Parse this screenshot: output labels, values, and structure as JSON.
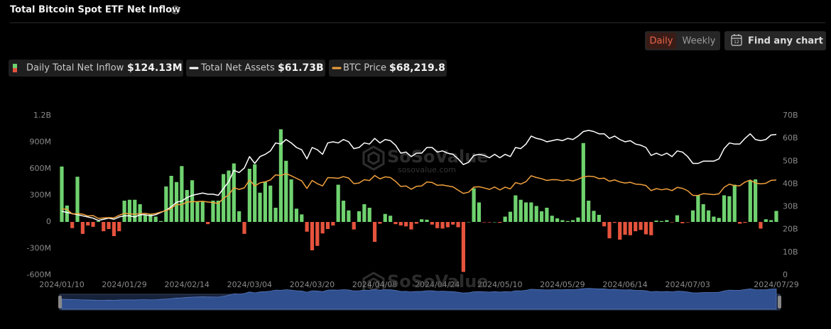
{
  "chart_data": {
    "type": "combo",
    "title": "Total Bitcoin Spot ETF Net Inflow",
    "controls": [
      "Daily",
      "Weekly"
    ],
    "active_control": 0,
    "find_chart": "Find any chart",
    "find_chart_icon": "12",
    "watermark": {
      "name": "SoSoValue",
      "url": "sosovalue.com"
    },
    "grid": false,
    "categories": [
      "2024/01/10",
      null,
      null,
      null,
      null,
      null,
      null,
      null,
      null,
      null,
      null,
      null,
      "2024/01/29",
      null,
      null,
      null,
      null,
      null,
      null,
      null,
      null,
      null,
      null,
      null,
      "2024/02/14",
      null,
      null,
      null,
      null,
      null,
      null,
      null,
      null,
      null,
      null,
      null,
      "2024/03/04",
      null,
      null,
      null,
      null,
      null,
      null,
      null,
      null,
      null,
      null,
      null,
      "2024/03/20",
      null,
      null,
      null,
      null,
      null,
      null,
      null,
      null,
      null,
      null,
      null,
      "2024/04/08",
      null,
      null,
      null,
      null,
      null,
      null,
      null,
      null,
      null,
      null,
      null,
      "2024/04/24",
      null,
      null,
      null,
      null,
      null,
      null,
      null,
      null,
      null,
      null,
      null,
      "2024/05/10",
      null,
      null,
      null,
      null,
      null,
      null,
      null,
      null,
      null,
      null,
      null,
      "2024/05/29",
      null,
      null,
      null,
      null,
      null,
      null,
      null,
      null,
      null,
      null,
      null,
      "2024/06/14",
      null,
      null,
      null,
      null,
      null,
      null,
      null,
      null,
      null,
      null,
      null,
      "2024/07/03",
      null,
      null,
      null,
      null,
      null,
      null,
      null,
      null,
      null,
      null,
      null,
      null,
      null,
      null,
      null,
      null,
      "2024/07/29"
    ],
    "ylim": [
      -600,
      1200
    ],
    "yticks": [
      {
        "value": -600,
        "label": "-600M"
      },
      {
        "value": -300,
        "label": "-300M"
      },
      0,
      {
        "value": 300,
        "label": "300M"
      },
      {
        "value": 600,
        "label": "600M"
      },
      {
        "value": 900,
        "label": "900M"
      },
      {
        "value": 1200,
        "label": "1.2B"
      }
    ],
    "y2lim": [
      0,
      70
    ],
    "y2ticks": [
      0,
      {
        "value": 10,
        "label": "10B"
      },
      {
        "value": 20,
        "label": "20B"
      },
      {
        "value": 30,
        "label": "30B"
      },
      {
        "value": 40,
        "label": "40B"
      },
      {
        "value": 50,
        "label": "50B"
      },
      {
        "value": 60,
        "label": "60B"
      },
      {
        "value": 70,
        "label": "70B"
      }
    ],
    "y3lim": [
      -3000,
      116500
    ],
    "series": [
      {
        "name": "Daily Total Net Inflow",
        "type": "bar",
        "axis": "y",
        "color": "#6fd26f",
        "negative_color": "#e5533d",
        "legend_value": "$124.13M",
        "values": [
          625,
          185,
          -70,
          510,
          -135,
          -40,
          -55,
          10,
          -105,
          -80,
          -160,
          -105,
          240,
          250,
          250,
          200,
          75,
          90,
          60,
          10,
          400,
          520,
          450,
          630,
          360,
          470,
          230,
          230,
          -25,
          240,
          240,
          540,
          580,
          660,
          120,
          -135,
          600,
          650,
          330,
          450,
          410,
          160,
          1045,
          690,
          480,
          150,
          85,
          -110,
          -320,
          -270,
          -130,
          -80,
          -40,
          420,
          240,
          130,
          -85,
          120,
          200,
          160,
          -225,
          -20,
          90,
          70,
          -25,
          -40,
          -50,
          -85,
          -20,
          30,
          25,
          -30,
          -70,
          -75,
          -60,
          -30,
          -60,
          -564,
          0,
          380,
          220,
          -5,
          -5,
          0,
          -10,
          60,
          115,
          300,
          250,
          220,
          220,
          180,
          120,
          160,
          70,
          40,
          20,
          10,
          20,
          50,
          890,
          240,
          125,
          80,
          -50,
          -185,
          -10,
          -200,
          -145,
          -150,
          -105,
          -90,
          -140,
          -150,
          15,
          10,
          20,
          -5,
          75,
          -15,
          -5,
          130,
          300,
          200,
          130,
          60,
          45,
          300,
          290,
          420,
          -20,
          -10,
          470,
          480,
          -75,
          30,
          20,
          124.13
        ]
      },
      {
        "name": "Total Net Assets",
        "type": "line",
        "axis": "y2",
        "color": "#ffffff",
        "legend_value": "$61.73B",
        "values": [
          28,
          27.5,
          27,
          26.5,
          26,
          25.5,
          25,
          24,
          24.5,
          25,
          24.5,
          25.5,
          26,
          26,
          25.5,
          26.5,
          26.5,
          26,
          26.5,
          27.5,
          28.5,
          30,
          32,
          32.5,
          34,
          35,
          35.5,
          36,
          35.5,
          35.5,
          35,
          38,
          41,
          46,
          45,
          47,
          52,
          49,
          52,
          53,
          54.5,
          58,
          57.5,
          59.5,
          58,
          56,
          55,
          51,
          56,
          55,
          53,
          58,
          58.5,
          58,
          59.5,
          58.5,
          55.5,
          56,
          58,
          57.5,
          60,
          58,
          59.5,
          59,
          57,
          53.5,
          54,
          52,
          53.5,
          53.5,
          56,
          56,
          54,
          54.5,
          53.5,
          53,
          51,
          48.5,
          49.5,
          52.5,
          53,
          52.5,
          51.5,
          53,
          51.5,
          53,
          52,
          56,
          55.5,
          57.5,
          61,
          60,
          59.5,
          58.5,
          59,
          59.5,
          59,
          60,
          59.5,
          61,
          63,
          63.5,
          63,
          62,
          62,
          60,
          61,
          59.5,
          58.5,
          59,
          57.5,
          57,
          56,
          52.5,
          53.5,
          52.5,
          53.5,
          52,
          54.5,
          54,
          52,
          49,
          49,
          50,
          50,
          50,
          51,
          55.5,
          58,
          57.5,
          57.5,
          60,
          62,
          59.5,
          59,
          59.5,
          61.5,
          61.73
        ]
      },
      {
        "name": "BTC Price",
        "type": "line",
        "axis": "y3",
        "color": "#f0a03c",
        "legend_value": "$68,219.8",
        "values": [
          46600,
          46300,
          42800,
          43100,
          42700,
          41300,
          41600,
          39500,
          39800,
          40100,
          39900,
          41800,
          43300,
          42900,
          42600,
          43100,
          43200,
          42600,
          43100,
          44300,
          45300,
          47100,
          50000,
          49700,
          51800,
          52000,
          52100,
          52300,
          51800,
          51300,
          50700,
          54500,
          57100,
          62500,
          61200,
          62400,
          68300,
          63800,
          66100,
          66900,
          68300,
          72100,
          71500,
          73100,
          71400,
          69500,
          67600,
          61900,
          67900,
          65500,
          63800,
          70000,
          69900,
          69500,
          70800,
          69700,
          65500,
          66000,
          68500,
          67800,
          71600,
          69100,
          70600,
          70100,
          67200,
          63400,
          63800,
          61300,
          63500,
          63800,
          66800,
          66400,
          64300,
          64500,
          63800,
          63100,
          60600,
          58200,
          59100,
          62900,
          63200,
          62300,
          61200,
          63000,
          60800,
          62900,
          61600,
          66300,
          65200,
          67000,
          71400,
          70100,
          69200,
          67900,
          68500,
          68400,
          67600,
          68400,
          67500,
          68800,
          70600,
          71100,
          70800,
          69300,
          69600,
          67300,
          68300,
          66800,
          66000,
          66500,
          65200,
          64900,
          64100,
          60300,
          61800,
          60900,
          61600,
          60300,
          62700,
          62000,
          60200,
          56700,
          56700,
          58000,
          57700,
          57300,
          57900,
          62800,
          65100,
          64000,
          63900,
          66700,
          68200,
          65900,
          65400,
          65800,
          68000,
          68219.8
        ]
      }
    ]
  }
}
